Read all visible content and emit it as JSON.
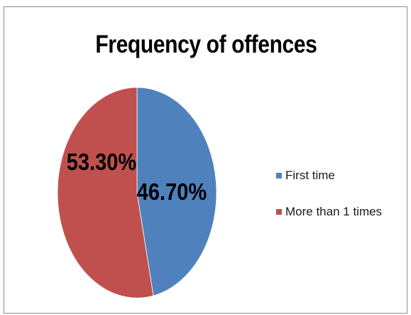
{
  "chart_data": {
    "type": "pie",
    "title": "Frequency of offences",
    "slices": [
      {
        "label": "First time",
        "value": 46.7,
        "display": "46.70%",
        "color": "#4f81bd"
      },
      {
        "label": "More than 1 times",
        "value": 53.3,
        "display": "53.30%",
        "color": "#c0504d"
      }
    ],
    "legend_position": "right",
    "start_angle": "12 o'clock",
    "direction": "clockwise"
  }
}
